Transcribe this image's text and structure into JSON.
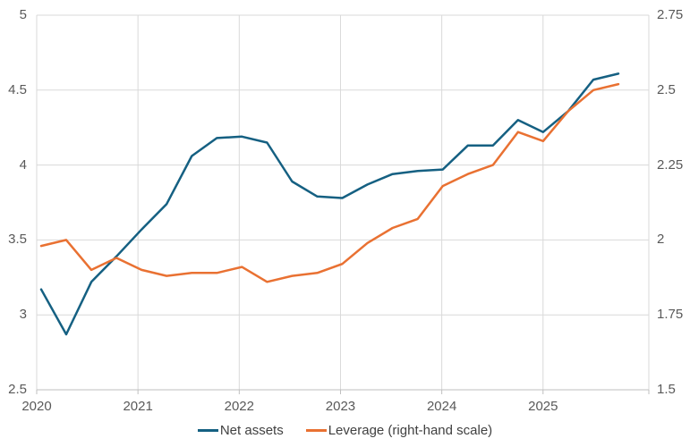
{
  "chart_data": {
    "type": "line",
    "title": "",
    "grid": true,
    "legend_position": "bottom",
    "x_tick_labels": [
      "2020",
      "2021",
      "2022",
      "2023",
      "2024",
      "2025"
    ],
    "categories": [
      "2020 Q1",
      "2020 Q2",
      "2020 Q3",
      "2020 Q4",
      "2021 Q1",
      "2021 Q2",
      "2021 Q3",
      "2021 Q4",
      "2022 Q1",
      "2022 Q2",
      "2022 Q3",
      "2022 Q4",
      "2023 Q1",
      "2023 Q2",
      "2023 Q3",
      "2023 Q4",
      "2024 Q1",
      "2024 Q2",
      "2024 Q3",
      "2024 Q4",
      "2025 Q1",
      "2025 Q2",
      "2025 Q3",
      "2025 Q4"
    ],
    "series": [
      {
        "name": "Net assets",
        "axis": "left",
        "color": "#156082",
        "values": [
          3.17,
          2.87,
          3.22,
          3.39,
          3.57,
          3.74,
          4.06,
          4.18,
          4.19,
          4.15,
          3.89,
          3.79,
          3.78,
          3.87,
          3.94,
          3.96,
          3.97,
          4.13,
          4.13,
          4.3,
          4.22,
          4.36,
          4.57,
          4.61
        ]
      },
      {
        "name": "Leverage (right-hand scale)",
        "axis": "right",
        "color": "#E97132",
        "values": [
          1.98,
          2.0,
          1.9,
          1.94,
          1.9,
          1.88,
          1.89,
          1.89,
          1.91,
          1.86,
          1.88,
          1.89,
          1.92,
          1.99,
          2.04,
          2.07,
          2.18,
          2.22,
          2.25,
          2.36,
          2.33,
          2.43,
          2.5,
          2.52
        ]
      }
    ],
    "left_axis": {
      "min": 2.5,
      "max": 5.0,
      "tick_labels": [
        "5",
        "4.5",
        "4",
        "3.5",
        "3",
        "2.5"
      ],
      "tick_values": [
        5.0,
        4.5,
        4.0,
        3.5,
        3.0,
        2.5
      ]
    },
    "right_axis": {
      "min": 1.5,
      "max": 2.75,
      "tick_labels": [
        "2.75",
        "2.5",
        "2.25",
        "2",
        "1.75",
        "1.5"
      ],
      "tick_values": [
        2.75,
        2.5,
        2.25,
        2.0,
        1.75,
        1.5
      ]
    }
  },
  "colors": {
    "background": "#FFFFFF",
    "gridline": "#D9D9D9",
    "axis_line": "#BFBFBF",
    "axis_label": "#595959",
    "legend_text": "#404040",
    "net_assets": "#156082",
    "leverage": "#E97132"
  }
}
